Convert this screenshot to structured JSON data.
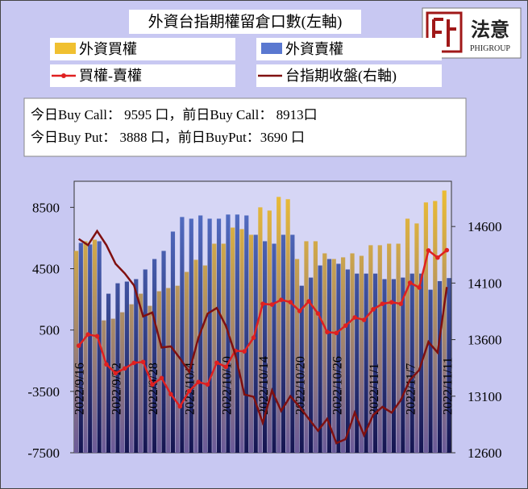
{
  "chart_data": {
    "type": "bar",
    "title": "外資台指期權留倉口數(左軸)",
    "categories": [
      "2022/9/16",
      null,
      null,
      null,
      "2022/9/22",
      null,
      null,
      null,
      "2022/9/28",
      null,
      null,
      null,
      "2022/10/4",
      null,
      null,
      null,
      "2022/10/10",
      null,
      null,
      null,
      "2022/10/14",
      null,
      null,
      null,
      "2022/10/20",
      null,
      null,
      null,
      "2022/10/26",
      null,
      null,
      null,
      "2022/11/1",
      null,
      null,
      null,
      "2022/11/7",
      null,
      null,
      null,
      "2022/11/11"
    ],
    "series": [
      {
        "name": "外資買權",
        "color": "#f0c030",
        "type": "bar",
        "values": [
          5660,
          6290,
          6390,
          1130,
          1240,
          1660,
          2180,
          2870,
          2080,
          3030,
          3240,
          3390,
          4290,
          5080,
          4710,
          6130,
          6130,
          7180,
          7080,
          6710,
          8500,
          8290,
          9180,
          9030,
          5130,
          6290,
          6290,
          5500,
          5130,
          5240,
          5500,
          5340,
          6030,
          6030,
          6130,
          6130,
          7760,
          7450,
          8820,
          8913,
          9595
        ]
      },
      {
        "name": "外資賣權",
        "color": "#5a78d0",
        "type": "bar",
        "values": [
          6180,
          6080,
          6290,
          2870,
          3550,
          3660,
          3820,
          4450,
          5130,
          5660,
          6920,
          7870,
          7760,
          7970,
          7760,
          7760,
          8030,
          8030,
          7970,
          6710,
          6290,
          6130,
          6710,
          6710,
          3390,
          3920,
          4710,
          5130,
          4820,
          4450,
          4180,
          4180,
          4180,
          3820,
          3820,
          3920,
          4180,
          4180,
          3130,
          3690,
          3888
        ]
      },
      {
        "name": "買權-賣權",
        "color": "#e02020",
        "type": "line",
        "marker": true,
        "values": [
          -520,
          210,
          100,
          -1740,
          -2310,
          -2000,
          -1640,
          -1580,
          -3050,
          -2630,
          -3680,
          -4480,
          -3470,
          -2890,
          -3050,
          -1630,
          -1900,
          -850,
          -890,
          0,
          2210,
          2160,
          2470,
          2320,
          1740,
          2370,
          1580,
          370,
          310,
          790,
          1320,
          1160,
          1850,
          2210,
          2310,
          2210,
          3580,
          3270,
          5690,
          5223,
          5707
        ]
      },
      {
        "name": "台指期收盤(右軸)",
        "color": "#801010",
        "type": "line",
        "axis": "y2",
        "marker": false,
        "values": [
          14490,
          14435,
          14560,
          14435,
          14270,
          14185,
          14080,
          13805,
          13840,
          13530,
          13540,
          13435,
          13315,
          13615,
          13830,
          13880,
          13720,
          13470,
          13115,
          13095,
          12865,
          13150,
          12970,
          13100,
          13005,
          12900,
          12795,
          12900,
          12685,
          12720,
          12955,
          12755,
          12935,
          13005,
          12955,
          13065,
          13245,
          13330,
          13580,
          13485,
          14065
        ]
      }
    ],
    "ylim": [
      -7500,
      10200
    ],
    "yticks": [
      -7500,
      -3500,
      500,
      4500,
      8500
    ],
    "y2lim": [
      12600,
      15000
    ],
    "y2ticks": [
      12600,
      13100,
      13600,
      14100,
      14600
    ],
    "grid": false
  },
  "info": {
    "lines": [
      "今日Buy Call： 9595 口，前日Buy Call： 8913口",
      "今日Buy Put： 3888 口，前日BuyPut：3690 口"
    ]
  },
  "logo": {
    "name": "法意",
    "sub": "PHIGROUP"
  }
}
